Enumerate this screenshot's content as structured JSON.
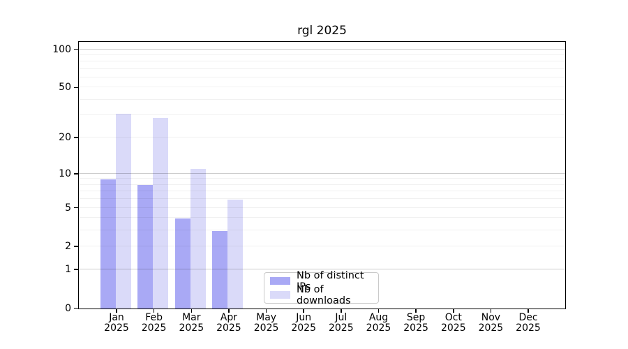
{
  "chart_data": {
    "type": "bar",
    "title": "rgl 2025",
    "x_months": [
      "Jan",
      "Feb",
      "Mar",
      "Apr",
      "May",
      "Jun",
      "Jul",
      "Aug",
      "Sep",
      "Oct",
      "Nov",
      "Dec"
    ],
    "year": "2025",
    "series": [
      {
        "name": "Nb of distinct IPs",
        "color": "#a9a9f5",
        "values": [
          9,
          8,
          4,
          3,
          0,
          0,
          0,
          0,
          0,
          0,
          0,
          0
        ]
      },
      {
        "name": "Nb of downloads",
        "color": "#dadaf9",
        "values": [
          31,
          29,
          11,
          6,
          0,
          0,
          0,
          0,
          0,
          0,
          0,
          0
        ]
      }
    ],
    "y_scale": "log1p",
    "ylim": [
      0,
      113
    ],
    "y_ticks": [
      0,
      1,
      2,
      5,
      10,
      20,
      50,
      100
    ],
    "y_tick_labels": [
      "0",
      "1",
      "2",
      "5",
      "10",
      "20",
      "50",
      "100"
    ],
    "major_gridlines": [
      1,
      10,
      100
    ],
    "minor_gridlines": [
      2,
      3,
      4,
      5,
      6,
      7,
      8,
      9,
      20,
      30,
      40,
      50,
      60,
      70,
      80,
      90
    ],
    "grid": true,
    "legend_position": "inside-bottom-center"
  },
  "colors": {
    "distinct_ips": "#a9a9f5",
    "downloads": "#dadaf9",
    "axis": "#000000",
    "major_grid": "#b3b3b3",
    "minor_grid": "#ededed",
    "legend_border": "#c9c9c9",
    "background": "#ffffff"
  }
}
